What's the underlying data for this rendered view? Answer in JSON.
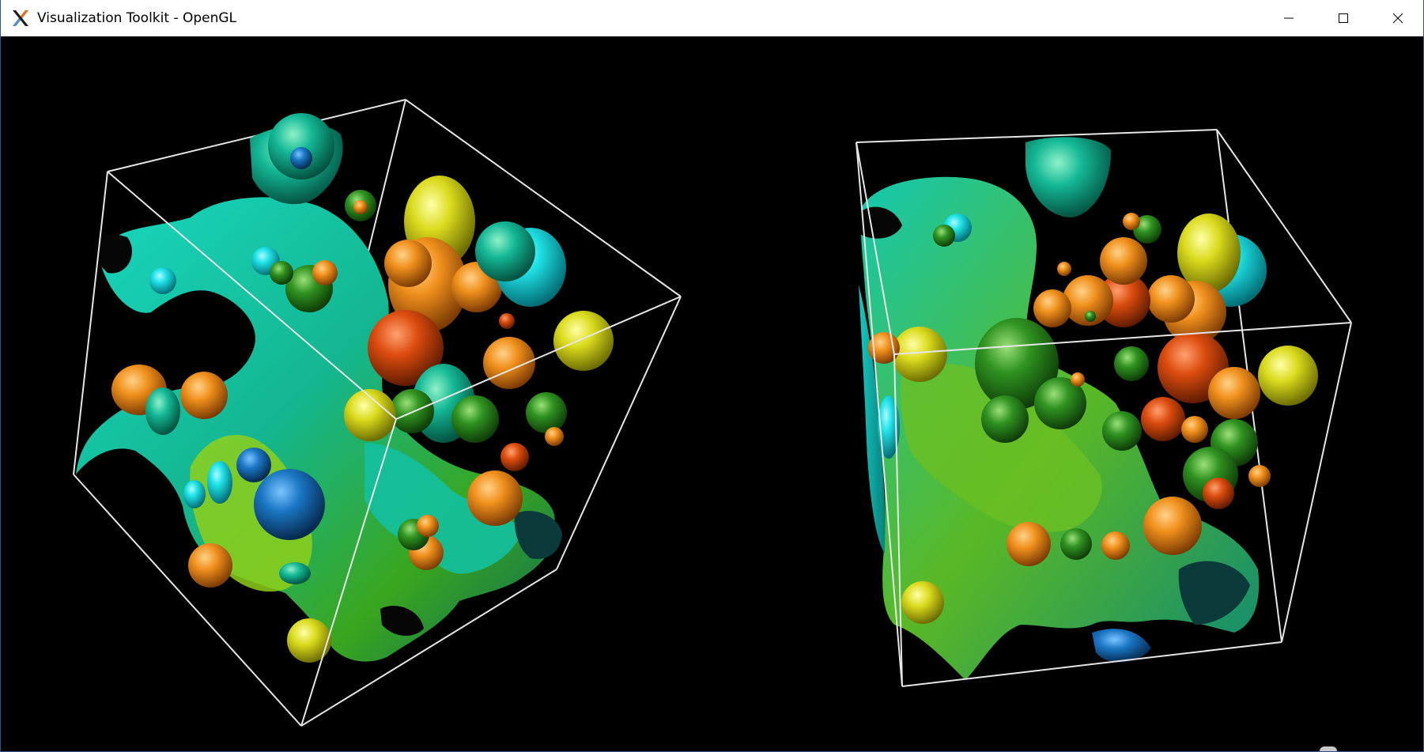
{
  "window": {
    "title": "Visualization Toolkit - OpenGL",
    "icon": "vtk-logo-icon",
    "controls": {
      "minimize": "minimize-icon",
      "maximize": "maximize-icon",
      "close": "close-icon"
    }
  },
  "scene": {
    "background": "#000000",
    "outline_color": "#e6e6e6",
    "renderers": [
      {
        "name": "left-render-view",
        "content": "isosurface-with-spheres"
      },
      {
        "name": "right-render-view",
        "content": "isosurface-with-spheres"
      }
    ],
    "palette": {
      "cyan": "#17e0e0",
      "teal": "#10b89a",
      "green": "#2f8f1c",
      "yellow": "#d8d81a",
      "orange": "#ee8c1a",
      "red_orange": "#d8480c",
      "blue": "#1a73c0"
    }
  }
}
